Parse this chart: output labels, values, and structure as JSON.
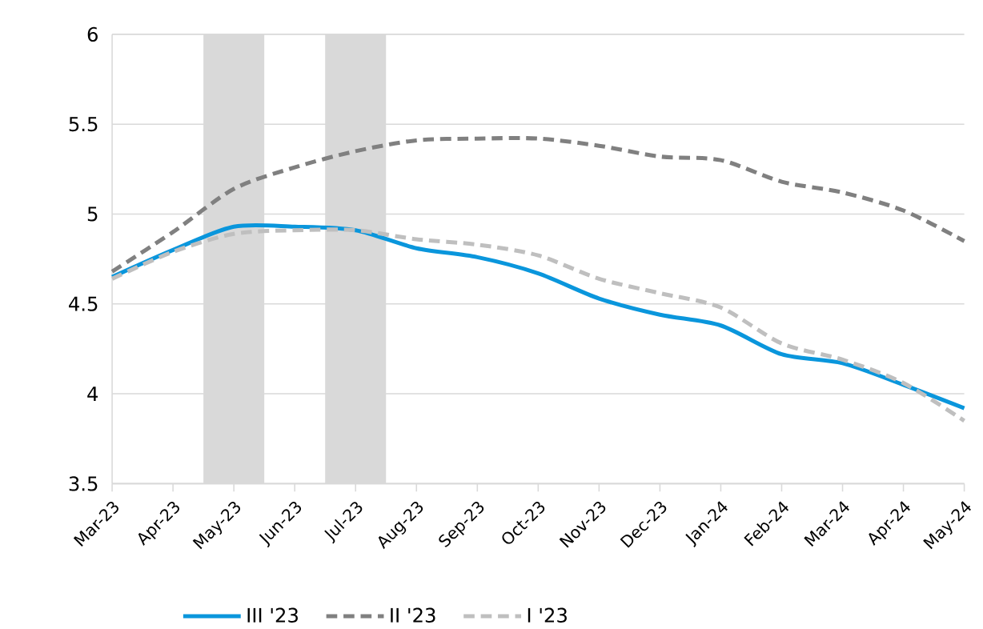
{
  "chart_data": {
    "type": "line",
    "categories": [
      "Mar-23",
      "Apr-23",
      "May-23",
      "Jun-23",
      "Jul-23",
      "Aug-23",
      "Sep-23",
      "Oct-23",
      "Nov-23",
      "Dec-23",
      "Jan-24",
      "Feb-24",
      "Mar-24",
      "Apr-24",
      "May-24"
    ],
    "series": [
      {
        "name": "III '23",
        "color": "#0a96dc",
        "line_style": "solid",
        "values": [
          4.65,
          4.8,
          4.93,
          4.93,
          4.91,
          4.81,
          4.76,
          4.67,
          4.53,
          4.44,
          4.38,
          4.22,
          4.17,
          4.05,
          3.92
        ]
      },
      {
        "name": "II '23",
        "color": "#808080",
        "line_style": "dashed",
        "values": [
          4.68,
          4.9,
          5.14,
          5.26,
          5.35,
          5.41,
          5.42,
          5.42,
          5.38,
          5.32,
          5.3,
          5.18,
          5.12,
          5.02,
          4.85
        ]
      },
      {
        "name": "I '23",
        "color": "#bfbfbf",
        "line_style": "dashed",
        "values": [
          4.64,
          4.79,
          4.89,
          4.91,
          4.91,
          4.86,
          4.83,
          4.77,
          4.64,
          4.56,
          4.48,
          4.28,
          4.19,
          4.06,
          3.85
        ]
      }
    ],
    "ylim": [
      3.5,
      6
    ],
    "yticks": [
      3.5,
      4,
      4.5,
      5,
      5.5,
      6
    ],
    "grid": "y",
    "legend": "bottom",
    "marker": "none",
    "bands": [
      {
        "axis": "x",
        "from": "May-23",
        "to": "May-23",
        "color": "#d9d9d9"
      },
      {
        "axis": "x",
        "from": "Jul-23",
        "to": "Jul-23",
        "color": "#d9d9d9"
      }
    ]
  }
}
